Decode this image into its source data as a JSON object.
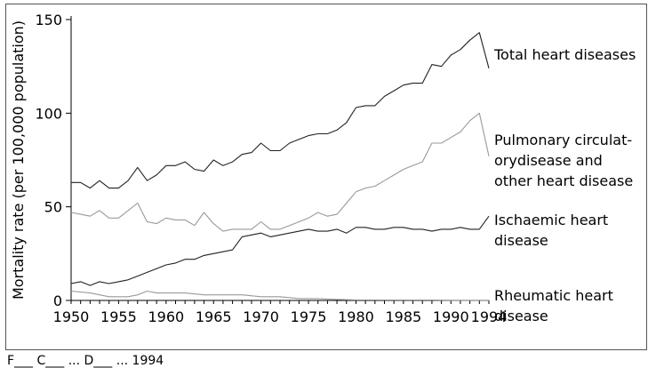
{
  "chart_data": {
    "type": "line",
    "title": "",
    "xlabel": "",
    "ylabel": "Mortality rate (per 100,000 population)",
    "xlim": [
      1950,
      1994
    ],
    "ylim": [
      0,
      150
    ],
    "x_ticks": [
      1950,
      1955,
      1960,
      1965,
      1970,
      1975,
      1980,
      1985,
      1990,
      1994
    ],
    "y_ticks": [
      0,
      50,
      100,
      150
    ],
    "grid": false,
    "legend": "none",
    "series": [
      {
        "name": "Total heart diseases",
        "label_lines": [
          "Total heart diseases"
        ],
        "x": [
          1950,
          1951,
          1952,
          1953,
          1954,
          1955,
          1956,
          1957,
          1958,
          1959,
          1960,
          1961,
          1962,
          1963,
          1964,
          1965,
          1966,
          1967,
          1968,
          1969,
          1970,
          1971,
          1972,
          1973,
          1974,
          1975,
          1976,
          1977,
          1978,
          1979,
          1980,
          1981,
          1982,
          1983,
          1984,
          1985,
          1986,
          1987,
          1988,
          1989,
          1990,
          1991,
          1992,
          1993,
          1994
        ],
        "y": [
          63,
          63,
          60,
          64,
          60,
          60,
          64,
          71,
          64,
          67,
          72,
          72,
          74,
          70,
          69,
          75,
          72,
          74,
          78,
          79,
          84,
          80,
          80,
          84,
          86,
          88,
          89,
          89,
          91,
          95,
          103,
          104,
          104,
          109,
          112,
          115,
          116,
          116,
          126,
          125,
          131,
          134,
          139,
          143,
          124
        ]
      },
      {
        "name": "Pulmonary circulatory disease and other heart disease",
        "label_lines": [
          "Pulmonary circulat-",
          "orydisease and",
          "other heart disease"
        ],
        "x": [
          1950,
          1951,
          1952,
          1953,
          1954,
          1955,
          1956,
          1957,
          1958,
          1959,
          1960,
          1961,
          1962,
          1963,
          1964,
          1965,
          1966,
          1967,
          1968,
          1969,
          1970,
          1971,
          1972,
          1973,
          1974,
          1975,
          1976,
          1977,
          1978,
          1979,
          1980,
          1981,
          1982,
          1983,
          1984,
          1985,
          1986,
          1987,
          1988,
          1989,
          1990,
          1991,
          1992,
          1993,
          1994
        ],
        "y": [
          47,
          46,
          45,
          48,
          44,
          44,
          48,
          52,
          42,
          41,
          44,
          43,
          43,
          40,
          47,
          41,
          37,
          38,
          38,
          38,
          42,
          38,
          38,
          40,
          42,
          44,
          47,
          45,
          46,
          52,
          58,
          60,
          61,
          64,
          67,
          70,
          72,
          74,
          84,
          84,
          87,
          90,
          96,
          100,
          77
        ]
      },
      {
        "name": "Ischaemic heart disease",
        "label_lines": [
          "Ischaemic heart",
          "disease"
        ],
        "x": [
          1950,
          1951,
          1952,
          1953,
          1954,
          1955,
          1956,
          1957,
          1958,
          1959,
          1960,
          1961,
          1962,
          1963,
          1964,
          1965,
          1966,
          1967,
          1968,
          1969,
          1970,
          1971,
          1972,
          1973,
          1974,
          1975,
          1976,
          1977,
          1978,
          1979,
          1980,
          1981,
          1982,
          1983,
          1984,
          1985,
          1986,
          1987,
          1988,
          1989,
          1990,
          1991,
          1992,
          1993,
          1994
        ],
        "y": [
          9,
          10,
          8,
          10,
          9,
          10,
          11,
          13,
          15,
          17,
          19,
          20,
          22,
          22,
          24,
          25,
          26,
          27,
          34,
          35,
          36,
          34,
          35,
          36,
          37,
          38,
          37,
          37,
          38,
          36,
          39,
          39,
          38,
          38,
          39,
          39,
          38,
          38,
          37,
          38,
          38,
          39,
          38,
          38,
          45
        ]
      },
      {
        "name": "Rheumatic heart disease",
        "label_lines": [
          "Rheumatic heart",
          "disease"
        ],
        "x": [
          1950,
          1952,
          1954,
          1956,
          1957,
          1958,
          1959,
          1960,
          1962,
          1964,
          1966,
          1968,
          1970,
          1972,
          1974,
          1976,
          1978,
          1980,
          1982,
          1984,
          1986,
          1988,
          1990,
          1992,
          1994
        ],
        "y": [
          5,
          4,
          2,
          2,
          3,
          5,
          4,
          4,
          4,
          3,
          3,
          3,
          2,
          2,
          1,
          1,
          0.5,
          0.3,
          0.3,
          0.2,
          0.2,
          0.2,
          0.1,
          0.1,
          0.1
        ]
      }
    ]
  },
  "footer_fragment": "F___ C___ ... D___ ... 1994"
}
